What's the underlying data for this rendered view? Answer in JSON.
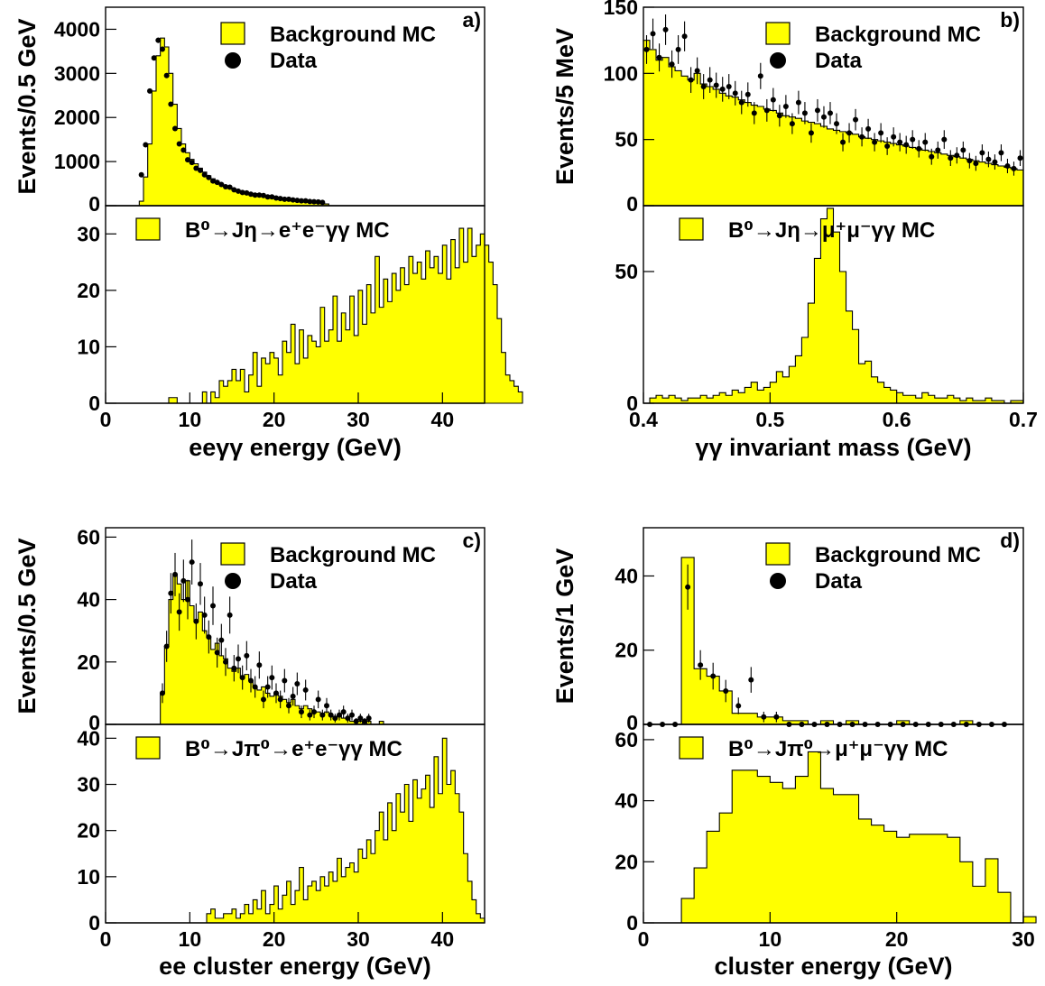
{
  "colors": {
    "fill": "#ffff00",
    "ink": "#000000"
  },
  "chart_data": [
    {
      "id": "a",
      "type": "bar",
      "tag": "a)",
      "xlabel": "eeγγ energy (GeV)",
      "xlim": [
        0,
        45
      ],
      "xticks": [
        0,
        10,
        20,
        30,
        40
      ],
      "top": {
        "ylabel": "Events/0.5 GeV",
        "ylim": [
          0,
          4500
        ],
        "yticks": [
          0,
          1000,
          2000,
          3000,
          4000
        ],
        "legend": [
          "Background MC",
          "Data"
        ],
        "bin_start": 4.0,
        "bin_width": 0.5,
        "mc": [
          100,
          650,
          1400,
          2600,
          3400,
          3800,
          3600,
          3000,
          2300,
          1750,
          1400,
          1200,
          1050,
          950,
          850,
          760,
          680,
          610,
          550,
          490,
          440,
          400,
          360,
          330,
          300,
          280,
          260,
          240,
          225,
          210,
          195,
          180,
          165,
          150,
          140,
          130,
          120,
          110,
          100,
          90,
          80,
          70,
          60,
          50,
          40
        ],
        "data_x": [
          4.25,
          4.75,
          5.25,
          5.75,
          6.25,
          6.75,
          7.25,
          7.75,
          8.25,
          8.75,
          9.25,
          9.75,
          10.25,
          10.75,
          11.25,
          11.75,
          12.25,
          12.75,
          13.25,
          13.75,
          14.25,
          14.75,
          15.25,
          15.75,
          16.25,
          16.75,
          17.25,
          17.75,
          18.25,
          18.75,
          19.25,
          19.75,
          20.25,
          20.75,
          21.25,
          21.75,
          22.25,
          22.75,
          23.25,
          23.75,
          24.25,
          24.75,
          25.25,
          25.75
        ],
        "data_y": [
          700,
          1380,
          2600,
          3350,
          3750,
          3550,
          2950,
          2300,
          1750,
          1400,
          1260,
          1040,
          980,
          850,
          800,
          700,
          640,
          560,
          530,
          480,
          430,
          420,
          360,
          330,
          300,
          290,
          260,
          240,
          240,
          230,
          200,
          200,
          175,
          160,
          145,
          145,
          130,
          120,
          110,
          110,
          95,
          90,
          85,
          75
        ]
      },
      "bottom": {
        "legend": "B⁰→Jη→e⁺e⁻γγ MC",
        "ylim": [
          0,
          35
        ],
        "yticks": [
          0,
          10,
          20,
          30
        ],
        "bin_start": 7.5,
        "bin_width": 0.5,
        "mc": [
          1,
          1,
          0,
          0,
          0,
          0,
          0,
          0,
          2,
          0,
          2,
          1,
          4,
          3,
          4,
          6,
          4,
          6,
          2,
          5,
          9,
          3,
          8,
          7,
          9,
          8,
          5,
          11,
          9,
          14,
          7,
          13,
          8,
          12,
          11,
          10,
          17,
          11,
          13,
          19,
          11,
          16,
          13,
          19,
          12,
          20,
          14,
          21,
          16,
          26,
          17,
          22,
          18,
          23,
          20,
          24,
          21,
          26,
          23,
          25,
          22,
          27,
          24,
          26,
          23,
          28,
          22,
          29,
          24,
          31,
          25,
          31,
          26,
          28,
          30,
          28,
          25,
          21,
          15,
          9,
          5,
          4,
          3,
          2
        ]
      }
    },
    {
      "id": "b",
      "type": "bar",
      "tag": "b)",
      "xlabel": "γγ invariant mass (GeV)",
      "xlim": [
        0.4,
        0.7
      ],
      "xticks": [
        0.4,
        0.5,
        0.6,
        0.7
      ],
      "top": {
        "ylabel": "Events/5 MeV",
        "ylim": [
          0,
          150
        ],
        "yticks": [
          0,
          50,
          100,
          150
        ],
        "legend": [
          "Background MC",
          "Data"
        ],
        "bin_start": 0.4,
        "bin_width": 0.005,
        "mc": [
          125,
          118,
          110,
          112,
          105,
          102,
          98,
          95,
          100,
          92,
          90,
          88,
          85,
          83,
          82,
          80,
          78,
          76,
          75,
          73,
          72,
          70,
          68,
          67,
          66,
          64,
          63,
          62,
          60,
          58,
          57,
          56,
          55,
          54,
          52,
          51,
          50,
          49,
          48,
          47,
          46,
          45,
          44,
          43,
          42,
          41,
          40,
          39,
          38,
          37,
          36,
          35,
          34,
          33,
          32,
          31,
          30,
          29,
          28,
          27
        ],
        "data_x": [
          0.4025,
          0.4075,
          0.4125,
          0.4175,
          0.4225,
          0.4275,
          0.4325,
          0.4375,
          0.4425,
          0.4475,
          0.4525,
          0.4575,
          0.4625,
          0.4675,
          0.4725,
          0.4775,
          0.4825,
          0.4875,
          0.4925,
          0.4975,
          0.5025,
          0.5075,
          0.5125,
          0.5175,
          0.5225,
          0.5275,
          0.5325,
          0.5375,
          0.5425,
          0.5475,
          0.5525,
          0.5575,
          0.5625,
          0.5675,
          0.5725,
          0.5775,
          0.5825,
          0.5875,
          0.5925,
          0.5975,
          0.6025,
          0.6075,
          0.6125,
          0.6175,
          0.6225,
          0.6275,
          0.6325,
          0.6375,
          0.6425,
          0.6475,
          0.6525,
          0.6575,
          0.6625,
          0.6675,
          0.6725,
          0.6775,
          0.6825,
          0.6875,
          0.6925,
          0.6975
        ],
        "data_y": [
          118,
          130,
          112,
          133,
          107,
          118,
          128,
          95,
          102,
          90,
          95,
          91,
          88,
          90,
          85,
          78,
          84,
          70,
          98,
          72,
          80,
          68,
          75,
          62,
          78,
          70,
          55,
          72,
          67,
          70,
          62,
          48,
          55,
          65,
          52,
          58,
          48,
          55,
          45,
          52,
          48,
          46,
          50,
          43,
          48,
          37,
          42,
          50,
          36,
          38,
          42,
          34,
          32,
          40,
          35,
          33,
          40,
          30,
          28,
          36
        ]
      },
      "bottom": {
        "legend": "B⁰→Jη→μ⁺μ⁻γγ MC",
        "ylim": [
          0,
          75
        ],
        "yticks": [
          0,
          50
        ],
        "bin_start": 0.4,
        "bin_width": 0.005,
        "mc": [
          0,
          2,
          3,
          2,
          3,
          2,
          1,
          2,
          2,
          3,
          2,
          3,
          4,
          3,
          5,
          4,
          6,
          8,
          5,
          6,
          8,
          12,
          10,
          14,
          18,
          25,
          38,
          55,
          70,
          74,
          65,
          50,
          35,
          28,
          15,
          16,
          10,
          8,
          6,
          5,
          4,
          3,
          3,
          2,
          4,
          3,
          2,
          2,
          3,
          2,
          1,
          2,
          1,
          1,
          2,
          1,
          1,
          0,
          1,
          1
        ]
      }
    },
    {
      "id": "c",
      "type": "bar",
      "tag": "c)",
      "xlabel": "ee cluster energy (GeV)",
      "xlim": [
        0,
        45
      ],
      "xticks": [
        0,
        10,
        20,
        30,
        40
      ],
      "top": {
        "ylabel": "Events/0.5 GeV",
        "ylim": [
          0,
          63
        ],
        "yticks": [
          0,
          20,
          40,
          60
        ],
        "legend": [
          "Background MC",
          "Data"
        ],
        "bin_start": 6.5,
        "bin_width": 0.5,
        "mc": [
          10,
          25,
          40,
          48,
          45,
          40,
          46,
          38,
          33,
          36,
          30,
          28,
          24,
          26,
          22,
          21,
          18,
          17,
          18,
          15,
          16,
          14,
          12,
          11,
          12,
          10,
          9,
          10,
          9,
          8,
          7,
          8,
          6,
          5,
          6,
          5,
          4,
          4,
          3,
          4,
          3,
          2,
          3,
          2,
          2,
          1,
          1,
          1,
          0,
          1,
          0,
          0,
          1,
          0,
          0
        ],
        "data_x": [
          6.75,
          7.25,
          7.75,
          8.25,
          8.75,
          9.25,
          9.75,
          10.25,
          10.75,
          11.25,
          11.75,
          12.25,
          12.75,
          13.25,
          13.75,
          14.25,
          14.75,
          15.25,
          15.75,
          16.25,
          16.75,
          17.25,
          17.75,
          18.25,
          18.75,
          19.25,
          19.75,
          20.25,
          20.75,
          21.25,
          21.75,
          22.25,
          22.75,
          23.25,
          23.75,
          24.25,
          24.75,
          25.25,
          25.75,
          26.25,
          26.75,
          27.25,
          27.75,
          28.25,
          28.75,
          29.25,
          29.75,
          30.25,
          30.75,
          31.25
        ],
        "data_y": [
          10,
          25,
          42,
          48,
          36,
          46,
          40,
          52,
          33,
          45,
          35,
          28,
          38,
          23,
          27,
          20,
          35,
          18,
          21,
          15,
          22,
          14,
          12,
          19,
          8,
          12,
          15,
          10,
          8,
          14,
          6,
          9,
          13,
          4,
          11,
          3,
          4,
          8,
          3,
          6,
          3,
          2,
          3,
          4,
          2,
          3,
          1,
          2,
          1,
          2
        ]
      },
      "bottom": {
        "legend": "B⁰→Jπ⁰→e⁺e⁻γγ MC",
        "ylim": [
          0,
          43
        ],
        "yticks": [
          0,
          10,
          20,
          30,
          40
        ],
        "bin_start": 12.0,
        "bin_width": 0.5,
        "mc": [
          2,
          3,
          1,
          1,
          2,
          2,
          3,
          1,
          2,
          4,
          2,
          5,
          3,
          7,
          2,
          4,
          8,
          3,
          6,
          9,
          4,
          7,
          12,
          5,
          8,
          9,
          7,
          10,
          8,
          11,
          9,
          14,
          10,
          12,
          13,
          11,
          16,
          14,
          18,
          15,
          20,
          24,
          18,
          26,
          20,
          28,
          24,
          30,
          22,
          31,
          27,
          29,
          32,
          25,
          36,
          28,
          40,
          30,
          33,
          28,
          24,
          15,
          9,
          5,
          2,
          1
        ]
      }
    },
    {
      "id": "d",
      "type": "bar",
      "tag": "d)",
      "xlabel": "cluster energy (GeV)",
      "xlim": [
        0,
        30
      ],
      "xticks": [
        0,
        10,
        20,
        30
      ],
      "top": {
        "ylabel": "Events/1 GeV",
        "ylim": [
          0,
          53
        ],
        "yticks": [
          0,
          20,
          40
        ],
        "legend": [
          "Background MC",
          "Data"
        ],
        "bin_start": 3,
        "bin_width": 1,
        "mc": [
          45,
          15,
          13,
          9,
          3,
          3,
          2,
          2,
          1,
          1,
          0,
          1,
          0,
          1,
          0,
          0,
          0,
          1,
          0,
          0,
          0,
          0,
          1,
          0,
          0,
          0
        ],
        "data_x": [
          0.5,
          1.5,
          2.5,
          3.5,
          4.5,
          5.5,
          6.5,
          7.5,
          8.5,
          9.5,
          10.5,
          11.5,
          12.5,
          13.5,
          14.5,
          15.5,
          16.5,
          17.5,
          18.5,
          19.5,
          20.5,
          21.5,
          22.5,
          23.5,
          24.5,
          25.5,
          26.5,
          27.5,
          28.5
        ],
        "data_y": [
          0,
          0,
          0,
          37,
          16,
          13,
          9,
          5,
          12,
          2,
          2,
          0,
          0,
          0,
          0,
          0,
          0,
          0,
          0,
          0,
          0,
          0,
          0,
          0,
          0,
          0,
          0,
          0,
          0
        ]
      },
      "bottom": {
        "legend": "B⁰→Jπ⁰→μ⁺μ⁻γγ MC",
        "ylim": [
          0,
          65
        ],
        "yticks": [
          0,
          20,
          40,
          60
        ],
        "bin_start": 3,
        "bin_width": 1,
        "mc": [
          8,
          18,
          30,
          36,
          50,
          50,
          48,
          46,
          44,
          48,
          56,
          44,
          42,
          42,
          34,
          32,
          30,
          28,
          29,
          29,
          29,
          28,
          20,
          12,
          21,
          10,
          0,
          2
        ]
      }
    }
  ]
}
